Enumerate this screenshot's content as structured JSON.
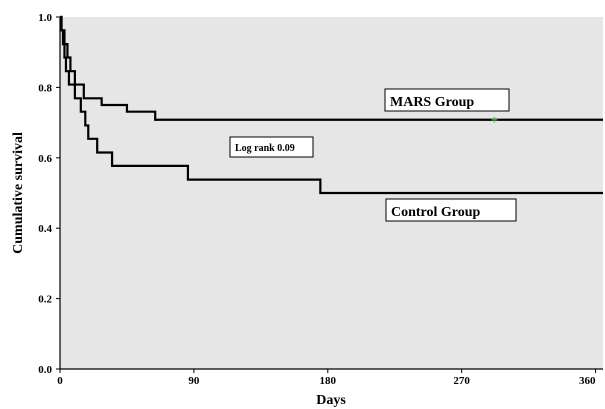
{
  "chart_data": {
    "type": "line",
    "subtype": "kaplan-meier-step",
    "title": "",
    "xlabel": "Days",
    "ylabel": "Cumulative survival",
    "xlim": [
      0,
      365
    ],
    "ylim": [
      0.0,
      1.0
    ],
    "x_ticks": [
      0,
      90,
      180,
      270,
      360
    ],
    "y_ticks": [
      0.0,
      0.2,
      0.4,
      0.6,
      0.8,
      1.0
    ],
    "y_tick_labels": [
      "0.0",
      "0.2",
      "0.4",
      "0.6",
      "0.8",
      "1.0"
    ],
    "grid": false,
    "background": "#e6e6e6",
    "series": [
      {
        "name": "MARS Group",
        "color": "#000000",
        "steps": [
          [
            0,
            1.0
          ],
          [
            1,
            0.962
          ],
          [
            3,
            0.923
          ],
          [
            5,
            0.885
          ],
          [
            7,
            0.846
          ],
          [
            10,
            0.808
          ],
          [
            16,
            0.769
          ],
          [
            28,
            0.75
          ],
          [
            45,
            0.731
          ],
          [
            64,
            0.708
          ],
          [
            365,
            0.708
          ]
        ],
        "censored": [
          [
            292,
            0.708
          ]
        ]
      },
      {
        "name": "Control Group",
        "color": "#000000",
        "steps": [
          [
            0,
            1.0
          ],
          [
            1,
            0.962
          ],
          [
            2,
            0.923
          ],
          [
            3,
            0.885
          ],
          [
            4,
            0.846
          ],
          [
            6,
            0.808
          ],
          [
            10,
            0.769
          ],
          [
            14,
            0.731
          ],
          [
            17,
            0.692
          ],
          [
            19,
            0.654
          ],
          [
            25,
            0.615
          ],
          [
            35,
            0.577
          ],
          [
            86,
            0.538
          ],
          [
            175,
            0.5
          ],
          [
            365,
            0.5
          ]
        ],
        "censored": []
      }
    ],
    "censor_marker_color": "#33cc33",
    "annotations": [
      {
        "text": "MARS Group"
      },
      {
        "text": "Control Group"
      },
      {
        "text": "Log rank 0.09"
      }
    ]
  }
}
